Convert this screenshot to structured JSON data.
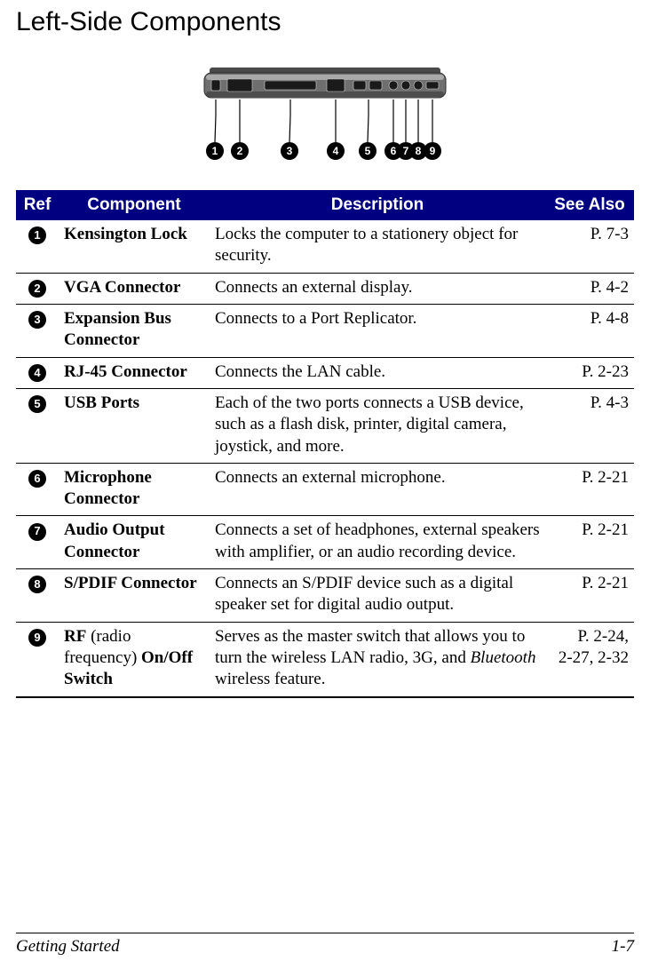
{
  "page_title": "Left-Side Components",
  "diagram": {
    "callouts": [
      "1",
      "2",
      "3",
      "4",
      "5",
      "6",
      "7",
      "8",
      "9"
    ],
    "callout_bg": "#000000",
    "callout_fg": "#ffffff",
    "device_fill": "#6f6f6f",
    "device_shadow": "#2b2b2b",
    "device_highlight": "#d0d0d0",
    "hinge_fill": "#4a4a4a",
    "pointer_color": "#000000"
  },
  "table": {
    "header_bg": "#000080",
    "header_fg": "#ffffff",
    "row_border": "#000000",
    "columns": {
      "ref": "Ref",
      "component": "Component",
      "description": "Description",
      "see_also": "See Also"
    },
    "rows": [
      {
        "ref": "1",
        "component": "Kensington Lock",
        "description": "Locks the computer to a stationery object for security.",
        "see_also": "P. 7-3"
      },
      {
        "ref": "2",
        "component": "VGA Connector",
        "description": "Connects an external display.",
        "see_also": "P. 4-2"
      },
      {
        "ref": "3",
        "component": "Expansion Bus Connector",
        "description": "Connects to a Port Replicator.",
        "see_also": "P. 4-8"
      },
      {
        "ref": "4",
        "component": "RJ-45 Connector",
        "description": "Connects the LAN cable.",
        "see_also": "P. 2-23"
      },
      {
        "ref": "5",
        "component": "USB Ports",
        "description": "Each of the two ports connects a USB device, such as a flash disk, printer, digital camera, joystick, and more.",
        "see_also": "P. 4-3"
      },
      {
        "ref": "6",
        "component": "Microphone Connector",
        "description": "Connects an external microphone.",
        "see_also": "P. 2-21"
      },
      {
        "ref": "7",
        "component": "Audio Output Connector",
        "description": "Connects a set of headphones, external speakers with amplifier, or an audio recording device.",
        "see_also": "P. 2-21"
      },
      {
        "ref": "8",
        "component": "S/PDIF Connector",
        "description": "Connects an S/PDIF device such as a digital speaker set for digital audio output.",
        "see_also": "P. 2-21"
      },
      {
        "ref": "9",
        "component_html": "<b>RF</b> <span class='comp-normal'>(radio frequency)</span> <b>On/Off Switch</b>",
        "description_html": "Serves as the master switch that allows you to turn the wireless LAN radio, 3G, and <span class='desc-italic'>Bluetooth</span> wireless feature.",
        "see_also": "P. 2-24,\n2-27, 2-32"
      }
    ]
  },
  "footer": {
    "left": "Getting Started",
    "right": "1-7"
  }
}
